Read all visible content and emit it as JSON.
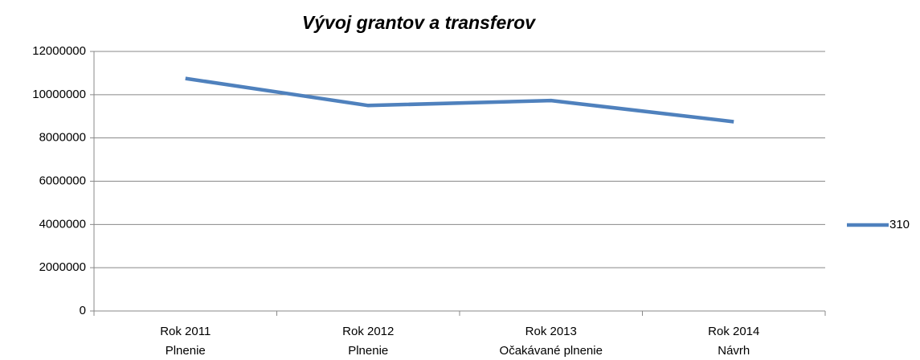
{
  "chart_data": {
    "type": "line",
    "title": "Vývoj grantov a transferov",
    "categories": [
      [
        "Rok 2011",
        "Plnenie"
      ],
      [
        "Rok 2012",
        "Plnenie"
      ],
      [
        "Rok 2013",
        "Očakávané plnenie"
      ],
      [
        "Rok 2014",
        "Návrh"
      ]
    ],
    "series": [
      {
        "name": "310",
        "color": "#4f81bd",
        "values": [
          10750000,
          9500000,
          9730000,
          8750000
        ]
      }
    ],
    "ylim": [
      0,
      12000000
    ],
    "yticks": [
      0,
      2000000,
      4000000,
      6000000,
      8000000,
      10000000,
      12000000
    ],
    "grid": true,
    "legend": "right"
  }
}
